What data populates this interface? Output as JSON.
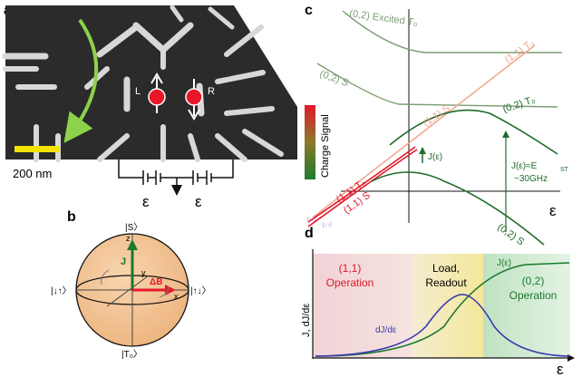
{
  "panels": {
    "a": {
      "letter": "a",
      "scalebar_label": "200 nm",
      "spin_left_label": "L",
      "spin_right_label": "R",
      "epsilon_left": "ε",
      "epsilon_right": "ε",
      "colors": {
        "scalebar": "#f4e400",
        "arrow": "#8ed14a",
        "dot": "#e8182a"
      }
    },
    "b": {
      "letter": "b",
      "top_state": "|S〉",
      "bottom_state": "|T₀〉",
      "left_state": "|↓↑〉",
      "right_state": "|↑↓〉",
      "z_axis": "z",
      "y_axis": "y",
      "x_axis": "x",
      "j_vector": "J",
      "db_vector": "ΔB",
      "colors": {
        "sphere": "#f3c69b",
        "j": "#1a7a2e",
        "db": "#e8182a"
      }
    },
    "c": {
      "letter": "c",
      "charge_signal_label": "Charge Signal",
      "curves": {
        "s02_excited_t0": "(0,2) Excited T₀",
        "t0_11_top": "(1,1) T₀",
        "s02_left": "(0,2) S",
        "s11_mid": "(1,1) S",
        "t0_02_right": "(0,2) T₀",
        "t0_11_left": "(1,1) T₀",
        "s11_left": "(1,1) S",
        "s02_right": "(0,2) S"
      },
      "j_label": "J(ε)",
      "jest_label": "J(ε)≈E",
      "jest_sub": "ST",
      "freq_label": "~30GHz",
      "axis_label": "ε",
      "bottom_left_states": [
        "|↑↓〉",
        "|↓↑〉"
      ],
      "colors": {
        "green": "#1f6b2a",
        "lightgreen": "#7b9e72",
        "pink": "#f2a48a",
        "red": "#e0182a",
        "purple": "#9b59c9"
      }
    },
    "d": {
      "letter": "d",
      "y_axis_label": "J, dJ/dε",
      "x_axis_label": "ε",
      "region_left": [
        "(1,1)",
        "Operation"
      ],
      "region_mid": [
        "Load,",
        "Readout"
      ],
      "region_right": [
        "(0,2)",
        "Operation"
      ],
      "j_curve_label": "J(ε)",
      "dj_curve_label": "dJ/dε",
      "colors": {
        "left_bg": "#f2d9dc",
        "mid_bg": "#f6efb8",
        "right_bg": "#c9e8cc",
        "j": "#1a7a2e",
        "dj": "#3a3ab0",
        "op_red": "#e0182a"
      }
    }
  }
}
